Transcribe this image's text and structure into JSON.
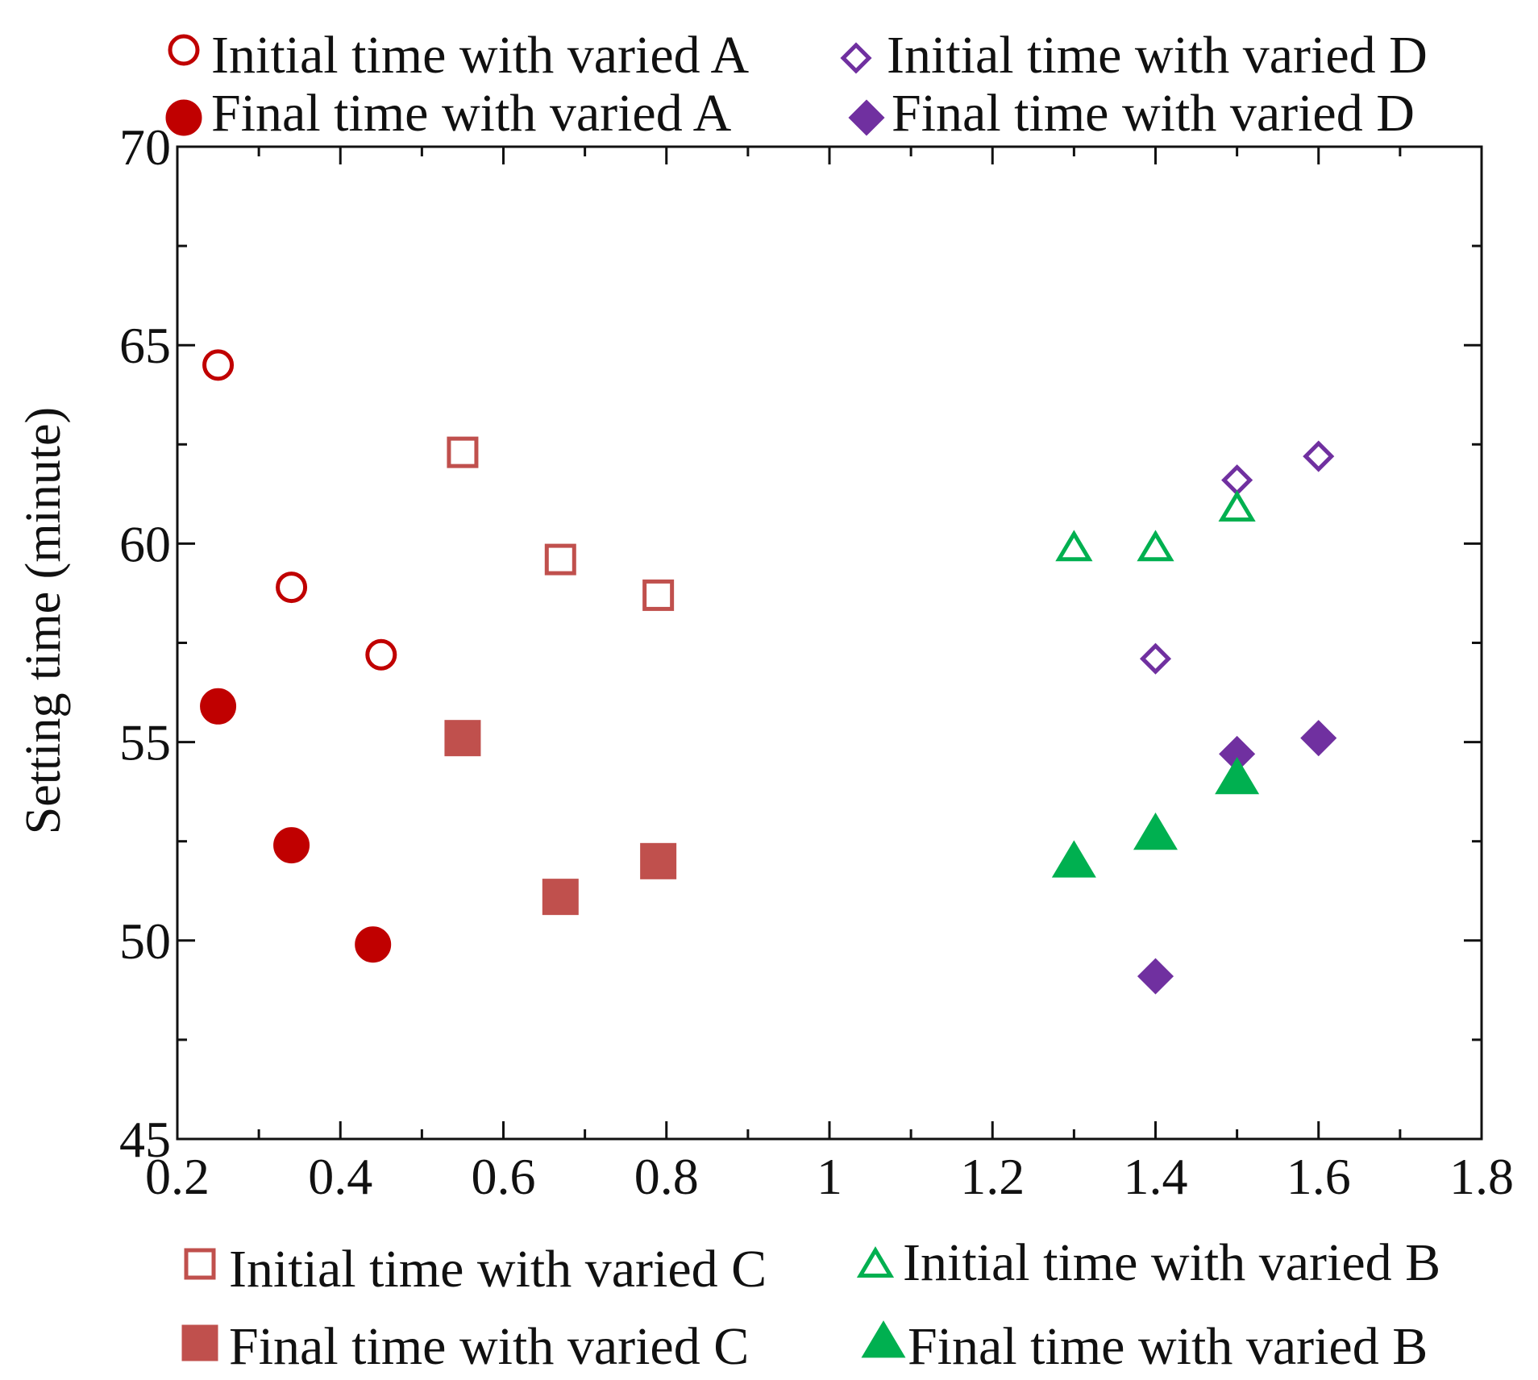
{
  "chart_data": {
    "type": "scatter",
    "title": "",
    "xlabel": "",
    "ylabel": "Setting time (minute)",
    "xlim": [
      0.2,
      1.8
    ],
    "ylim": [
      45,
      70
    ],
    "xticks": [
      "0.2",
      "0.4",
      "0.6",
      "0.8",
      "1",
      "1.2",
      "1.4",
      "1.6",
      "1.8"
    ],
    "yticks": [
      "45",
      "50",
      "55",
      "60",
      "65",
      "70"
    ],
    "grid": false,
    "series": [
      {
        "name": "Initial time with varied A",
        "marker": "circle-open",
        "color": "#c00000",
        "points": [
          [
            0.25,
            64.5
          ],
          [
            0.34,
            58.9
          ],
          [
            0.45,
            57.2
          ]
        ]
      },
      {
        "name": "Final time with varied A",
        "marker": "circle-filled",
        "color": "#c00000",
        "points": [
          [
            0.25,
            55.9
          ],
          [
            0.34,
            52.4
          ],
          [
            0.44,
            49.9
          ]
        ]
      },
      {
        "name": "Initial time with varied D",
        "marker": "diamond-open",
        "color": "#7030a0",
        "points": [
          [
            1.4,
            57.1
          ],
          [
            1.5,
            61.6
          ],
          [
            1.6,
            62.2
          ]
        ]
      },
      {
        "name": "Final time with varied D",
        "marker": "diamond-filled",
        "color": "#7030a0",
        "points": [
          [
            1.4,
            49.1
          ],
          [
            1.5,
            54.7
          ],
          [
            1.6,
            55.1
          ]
        ]
      },
      {
        "name": "Initial time with varied C",
        "marker": "square-open",
        "color": "#c0504d",
        "points": [
          [
            0.55,
            62.3
          ],
          [
            0.67,
            59.6
          ],
          [
            0.79,
            58.7
          ]
        ]
      },
      {
        "name": "Final time with varied C",
        "marker": "square-filled",
        "color": "#c0504d",
        "points": [
          [
            0.55,
            55.1
          ],
          [
            0.67,
            51.1
          ],
          [
            0.79,
            52.0
          ]
        ]
      },
      {
        "name": "Initial time with varied B",
        "marker": "triangle-open",
        "color": "#00b050",
        "points": [
          [
            1.3,
            59.9
          ],
          [
            1.4,
            59.9
          ],
          [
            1.5,
            60.9
          ]
        ]
      },
      {
        "name": "Final time with varied B",
        "marker": "triangle-filled",
        "color": "#00b050",
        "points": [
          [
            1.3,
            52.0
          ],
          [
            1.4,
            52.7
          ],
          [
            1.5,
            54.1
          ]
        ]
      }
    ],
    "legend_top": [
      {
        "series": 0,
        "label": "Initial time with varied A"
      },
      {
        "series": 2,
        "label": "Initial time with varied D"
      },
      {
        "series": 1,
        "label": "Final time with varied A"
      },
      {
        "series": 3,
        "label": "Final time with varied D"
      }
    ],
    "legend_bottom": [
      {
        "series": 4,
        "label": "Initial time with varied C"
      },
      {
        "series": 6,
        "label": "Initial time with varied B"
      },
      {
        "series": 5,
        "label": "Final time with varied C"
      },
      {
        "series": 7,
        "label": "Final time with varied B"
      }
    ]
  }
}
